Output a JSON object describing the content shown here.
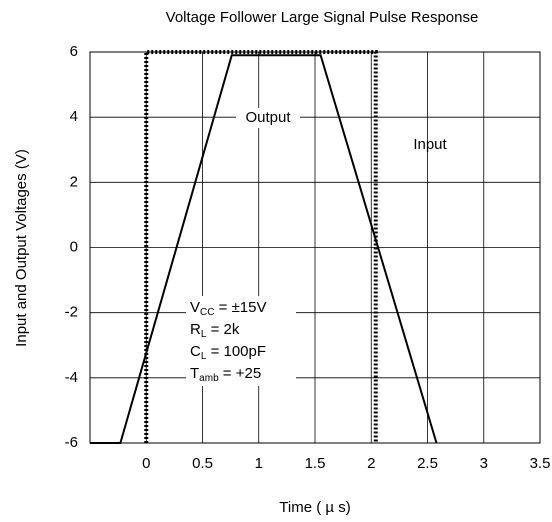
{
  "chart_data": {
    "type": "line",
    "title": "Voltage Follower Large Signal Pulse Response",
    "xlabel": "Time ( µ s)",
    "ylabel": "Input and Output Voltages (V)",
    "xlim": [
      -0.5,
      3.5
    ],
    "xticks": [
      0,
      0.5,
      1,
      1.5,
      2,
      2.5,
      3,
      3.5
    ],
    "ylim": [
      -6,
      6
    ],
    "yticks": [
      -6,
      -4,
      -2,
      0,
      2,
      4,
      6
    ],
    "grid": true,
    "series": [
      {
        "name": "Input",
        "color": "#000000",
        "style": "dotted",
        "x": [
          0,
          0,
          2.04,
          2.04
        ],
        "values": [
          -6,
          6,
          6,
          -6
        ]
      },
      {
        "name": "Output",
        "color": "#000000",
        "style": "solid",
        "x": [
          -0.5,
          -0.23,
          0.76,
          1.55,
          2.58
        ],
        "values": [
          -6,
          -6,
          5.9,
          5.9,
          -6
        ]
      }
    ],
    "conditions": [
      {
        "main": "V",
        "sub": "CC",
        "rest": " = ±15V"
      },
      {
        "main": "R",
        "sub": "L",
        "rest": " = 2k"
      },
      {
        "main": "C",
        "sub": "L",
        "rest": " = 100pF"
      },
      {
        "main": "T",
        "sub": "amb",
        "rest": " = +25"
      }
    ]
  }
}
